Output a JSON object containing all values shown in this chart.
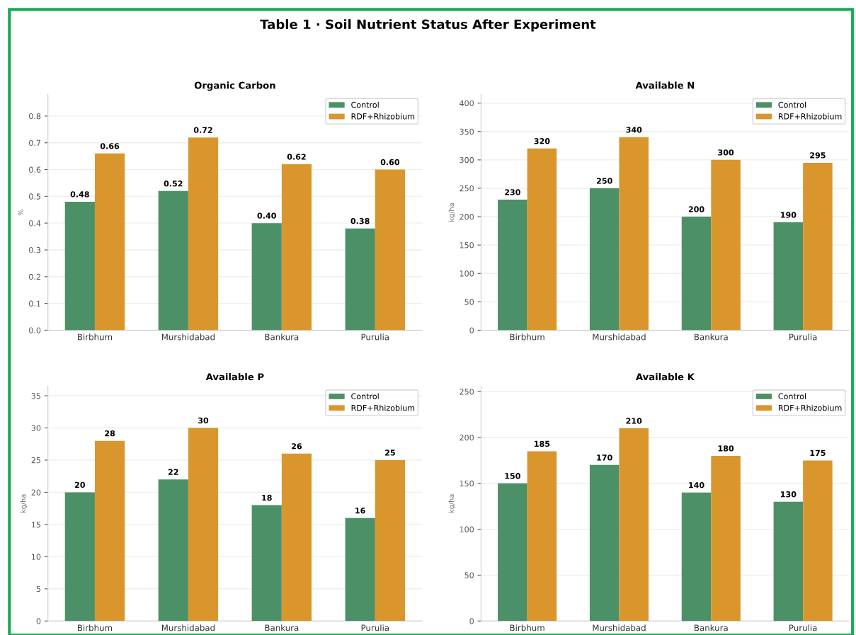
{
  "chart_data": [
    {
      "type": "bar",
      "title": "Organic Carbon",
      "ylabel": "%",
      "annotations": [
        "Table 1 · Soil Nutrient Status After Experiment"
      ],
      "categories": [
        "Birbhum",
        "Murshidabad",
        "Bankura",
        "Purulia"
      ],
      "series": [
        {
          "name": "Control",
          "color": "#428a60",
          "values": [
            0.48,
            0.52,
            0.4,
            0.38
          ],
          "value_labels": [
            "0.48",
            "0.52",
            "0.40",
            "0.38"
          ]
        },
        {
          "name": "RDF+Rhizobium",
          "color": "#d79022",
          "values": [
            0.66,
            0.72,
            0.62,
            0.6
          ],
          "value_labels": [
            "0.66",
            "0.72",
            "0.62",
            "0.60"
          ]
        }
      ],
      "ylim": [
        0,
        0.88
      ],
      "yticks": [
        {
          "value": 0,
          "label": "0.0"
        },
        0.1,
        0.2,
        0.3,
        0.4,
        0.5,
        0.6,
        0.7,
        0.8
      ],
      "grid": "y",
      "legend": "top right"
    },
    {
      "type": "bar",
      "title": "Available N",
      "ylabel": "kg/ha",
      "categories": [
        "Birbhum",
        "Murshidabad",
        "Bankura",
        "Purulia"
      ],
      "series": [
        {
          "name": "Control",
          "color": "#428a60",
          "values": [
            230,
            250,
            200,
            190
          ]
        },
        {
          "name": "RDF+Rhizobium",
          "color": "#d79022",
          "values": [
            320,
            340,
            300,
            295
          ]
        }
      ],
      "ylim": [
        0,
        415
      ],
      "yticks": [
        0,
        50,
        100,
        150,
        200,
        250,
        300,
        350,
        400
      ],
      "grid": "y",
      "legend": "top right",
      "data_labels": true
    },
    {
      "type": "bar",
      "title": "Available P",
      "ylabel": "kg/ha",
      "categories": [
        "Birbhum",
        "Murshidabad",
        "Bankura",
        "Purulia"
      ],
      "series": [
        {
          "name": "Control",
          "color": "#428a60",
          "values": [
            20,
            22,
            18,
            16
          ]
        },
        {
          "name": "RDF+Rhizobium",
          "color": "#d79022",
          "values": [
            28,
            30,
            26,
            25
          ]
        }
      ],
      "ylim": [
        0,
        36.5
      ],
      "yticks": [
        0,
        5,
        10,
        15,
        20,
        25,
        30,
        35
      ],
      "grid": "y",
      "legend": "top right",
      "data_labels": true
    },
    {
      "type": "bar",
      "title": "Available K",
      "ylabel": "kg/ha",
      "categories": [
        "Birbhum",
        "Murshidabad",
        "Bankura",
        "Purulia"
      ],
      "series": [
        {
          "name": "Control",
          "color": "#428a60",
          "values": [
            150,
            170,
            140,
            130
          ]
        },
        {
          "name": "RDF+Rhizobium",
          "color": "#d79022",
          "values": [
            185,
            210,
            180,
            175
          ]
        }
      ],
      "ylim": [
        0,
        256
      ],
      "yticks": [
        0,
        50,
        100,
        150,
        200,
        250
      ],
      "grid": "y",
      "legend": "top right",
      "data_labels": true
    }
  ]
}
